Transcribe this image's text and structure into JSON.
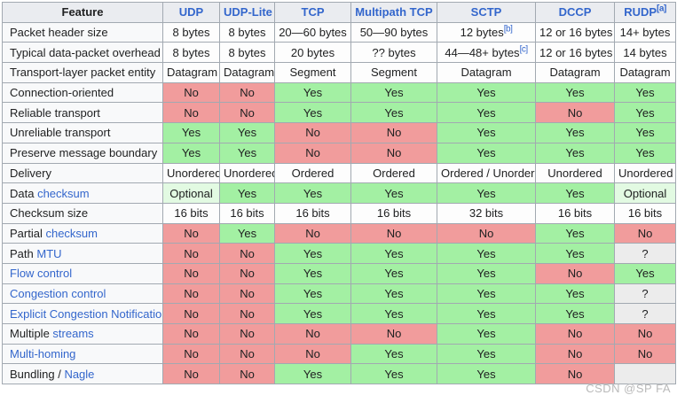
{
  "page": {
    "watermark": "CSDN @SP FA"
  },
  "colors": {
    "yes_bg": "#a3f0a3",
    "no_bg": "#f19c9c",
    "optional_bg": "#e2fae2",
    "unknown_bg": "#ececec",
    "header_bg": "#eaecf0",
    "feature_col_bg": "#f8f9fa",
    "border": "#a2a9b1",
    "link": "#3366cc",
    "text": "#202122"
  },
  "table": {
    "header": [
      {
        "label": "Feature",
        "link": false
      },
      {
        "label": "UDP",
        "link": true
      },
      {
        "label": "UDP-Lite",
        "link": true
      },
      {
        "label": "TCP",
        "link": true
      },
      {
        "label": "Multipath TCP",
        "link": true
      },
      {
        "label": "SCTP",
        "link": true
      },
      {
        "label": "DCCP",
        "link": true
      },
      {
        "label": "RUDP",
        "link": true,
        "sup": "[a]"
      }
    ],
    "rows": [
      {
        "feature": [
          {
            "t": "Packet header size",
            "link": false
          }
        ],
        "cells": [
          {
            "t": "8 bytes",
            "c": "plain"
          },
          {
            "t": "8 bytes",
            "c": "plain"
          },
          {
            "t": "20—60 bytes",
            "c": "plain"
          },
          {
            "t": "50—90 bytes",
            "c": "plain"
          },
          {
            "t": "12 bytes",
            "c": "plain",
            "sup": "[b]"
          },
          {
            "t": "12 or 16 bytes",
            "c": "plain"
          },
          {
            "t": "14+ bytes",
            "c": "plain"
          }
        ]
      },
      {
        "feature": [
          {
            "t": "Typical data-packet overhead",
            "link": false
          }
        ],
        "cells": [
          {
            "t": "8 bytes",
            "c": "plain"
          },
          {
            "t": "8 bytes",
            "c": "plain"
          },
          {
            "t": "20 bytes",
            "c": "plain"
          },
          {
            "t": "?? bytes",
            "c": "plain"
          },
          {
            "t": "44—48+ bytes",
            "c": "plain",
            "sup": "[c]"
          },
          {
            "t": "12 or 16 bytes",
            "c": "plain"
          },
          {
            "t": "14 bytes",
            "c": "plain"
          }
        ]
      },
      {
        "feature": [
          {
            "t": "Transport-layer packet entity",
            "link": false
          }
        ],
        "cells": [
          {
            "t": "Datagram",
            "c": "plain"
          },
          {
            "t": "Datagram",
            "c": "plain"
          },
          {
            "t": "Segment",
            "c": "plain"
          },
          {
            "t": "Segment",
            "c": "plain"
          },
          {
            "t": "Datagram",
            "c": "plain"
          },
          {
            "t": "Datagram",
            "c": "plain"
          },
          {
            "t": "Datagram",
            "c": "plain"
          }
        ]
      },
      {
        "feature": [
          {
            "t": "Connection-oriented",
            "link": false
          }
        ],
        "cells": [
          {
            "t": "No",
            "c": "no"
          },
          {
            "t": "No",
            "c": "no"
          },
          {
            "t": "Yes",
            "c": "yes"
          },
          {
            "t": "Yes",
            "c": "yes"
          },
          {
            "t": "Yes",
            "c": "yes"
          },
          {
            "t": "Yes",
            "c": "yes"
          },
          {
            "t": "Yes",
            "c": "yes"
          }
        ]
      },
      {
        "feature": [
          {
            "t": "Reliable transport",
            "link": false
          }
        ],
        "cells": [
          {
            "t": "No",
            "c": "no"
          },
          {
            "t": "No",
            "c": "no"
          },
          {
            "t": "Yes",
            "c": "yes"
          },
          {
            "t": "Yes",
            "c": "yes"
          },
          {
            "t": "Yes",
            "c": "yes"
          },
          {
            "t": "No",
            "c": "no"
          },
          {
            "t": "Yes",
            "c": "yes"
          }
        ]
      },
      {
        "feature": [
          {
            "t": "Unreliable transport",
            "link": false
          }
        ],
        "cells": [
          {
            "t": "Yes",
            "c": "yes"
          },
          {
            "t": "Yes",
            "c": "yes"
          },
          {
            "t": "No",
            "c": "no"
          },
          {
            "t": "No",
            "c": "no"
          },
          {
            "t": "Yes",
            "c": "yes"
          },
          {
            "t": "Yes",
            "c": "yes"
          },
          {
            "t": "Yes",
            "c": "yes"
          }
        ]
      },
      {
        "feature": [
          {
            "t": "Preserve message boundary",
            "link": false
          }
        ],
        "cells": [
          {
            "t": "Yes",
            "c": "yes"
          },
          {
            "t": "Yes",
            "c": "yes"
          },
          {
            "t": "No",
            "c": "no"
          },
          {
            "t": "No",
            "c": "no"
          },
          {
            "t": "Yes",
            "c": "yes"
          },
          {
            "t": "Yes",
            "c": "yes"
          },
          {
            "t": "Yes",
            "c": "yes"
          }
        ]
      },
      {
        "feature": [
          {
            "t": "Delivery",
            "link": false
          }
        ],
        "cells": [
          {
            "t": "Unordered",
            "c": "plain"
          },
          {
            "t": "Unordered",
            "c": "plain"
          },
          {
            "t": "Ordered",
            "c": "plain"
          },
          {
            "t": "Ordered",
            "c": "plain"
          },
          {
            "t": "Ordered / Unordered",
            "c": "plain"
          },
          {
            "t": "Unordered",
            "c": "plain"
          },
          {
            "t": "Unordered",
            "c": "plain"
          }
        ]
      },
      {
        "feature": [
          {
            "t": "Data ",
            "link": false
          },
          {
            "t": "checksum",
            "link": true
          }
        ],
        "cells": [
          {
            "t": "Optional",
            "c": "opt"
          },
          {
            "t": "Yes",
            "c": "yes"
          },
          {
            "t": "Yes",
            "c": "yes"
          },
          {
            "t": "Yes",
            "c": "yes"
          },
          {
            "t": "Yes",
            "c": "yes"
          },
          {
            "t": "Yes",
            "c": "yes"
          },
          {
            "t": "Optional",
            "c": "opt"
          }
        ]
      },
      {
        "feature": [
          {
            "t": "Checksum size",
            "link": false
          }
        ],
        "cells": [
          {
            "t": "16 bits",
            "c": "plain"
          },
          {
            "t": "16 bits",
            "c": "plain"
          },
          {
            "t": "16 bits",
            "c": "plain"
          },
          {
            "t": "16 bits",
            "c": "plain"
          },
          {
            "t": "32 bits",
            "c": "plain"
          },
          {
            "t": "16 bits",
            "c": "plain"
          },
          {
            "t": "16 bits",
            "c": "plain"
          }
        ]
      },
      {
        "feature": [
          {
            "t": "Partial ",
            "link": false
          },
          {
            "t": "checksum",
            "link": true
          }
        ],
        "cells": [
          {
            "t": "No",
            "c": "no"
          },
          {
            "t": "Yes",
            "c": "yes"
          },
          {
            "t": "No",
            "c": "no"
          },
          {
            "t": "No",
            "c": "no"
          },
          {
            "t": "No",
            "c": "no"
          },
          {
            "t": "Yes",
            "c": "yes"
          },
          {
            "t": "No",
            "c": "no"
          }
        ]
      },
      {
        "feature": [
          {
            "t": "Path ",
            "link": false
          },
          {
            "t": "MTU",
            "link": true
          }
        ],
        "cells": [
          {
            "t": "No",
            "c": "no"
          },
          {
            "t": "No",
            "c": "no"
          },
          {
            "t": "Yes",
            "c": "yes"
          },
          {
            "t": "Yes",
            "c": "yes"
          },
          {
            "t": "Yes",
            "c": "yes"
          },
          {
            "t": "Yes",
            "c": "yes"
          },
          {
            "t": "?",
            "c": "unk"
          }
        ]
      },
      {
        "feature": [
          {
            "t": "Flow control",
            "link": true
          }
        ],
        "cells": [
          {
            "t": "No",
            "c": "no"
          },
          {
            "t": "No",
            "c": "no"
          },
          {
            "t": "Yes",
            "c": "yes"
          },
          {
            "t": "Yes",
            "c": "yes"
          },
          {
            "t": "Yes",
            "c": "yes"
          },
          {
            "t": "No",
            "c": "no"
          },
          {
            "t": "Yes",
            "c": "yes"
          }
        ]
      },
      {
        "feature": [
          {
            "t": "Congestion control",
            "link": true
          }
        ],
        "cells": [
          {
            "t": "No",
            "c": "no"
          },
          {
            "t": "No",
            "c": "no"
          },
          {
            "t": "Yes",
            "c": "yes"
          },
          {
            "t": "Yes",
            "c": "yes"
          },
          {
            "t": "Yes",
            "c": "yes"
          },
          {
            "t": "Yes",
            "c": "yes"
          },
          {
            "t": "?",
            "c": "unk"
          }
        ]
      },
      {
        "feature": [
          {
            "t": "Explicit Congestion Notification",
            "link": true
          }
        ],
        "cells": [
          {
            "t": "No",
            "c": "no"
          },
          {
            "t": "No",
            "c": "no"
          },
          {
            "t": "Yes",
            "c": "yes"
          },
          {
            "t": "Yes",
            "c": "yes"
          },
          {
            "t": "Yes",
            "c": "yes"
          },
          {
            "t": "Yes",
            "c": "yes"
          },
          {
            "t": "?",
            "c": "unk"
          }
        ]
      },
      {
        "feature": [
          {
            "t": "Multiple ",
            "link": false
          },
          {
            "t": "streams",
            "link": true
          }
        ],
        "cells": [
          {
            "t": "No",
            "c": "no"
          },
          {
            "t": "No",
            "c": "no"
          },
          {
            "t": "No",
            "c": "no"
          },
          {
            "t": "No",
            "c": "no"
          },
          {
            "t": "Yes",
            "c": "yes"
          },
          {
            "t": "No",
            "c": "no"
          },
          {
            "t": "No",
            "c": "no"
          }
        ]
      },
      {
        "feature": [
          {
            "t": "Multi-homing",
            "link": true
          }
        ],
        "cells": [
          {
            "t": "No",
            "c": "no"
          },
          {
            "t": "No",
            "c": "no"
          },
          {
            "t": "No",
            "c": "no"
          },
          {
            "t": "Yes",
            "c": "yes"
          },
          {
            "t": "Yes",
            "c": "yes"
          },
          {
            "t": "No",
            "c": "no"
          },
          {
            "t": "No",
            "c": "no"
          }
        ]
      },
      {
        "feature": [
          {
            "t": "Bundling / ",
            "link": false
          },
          {
            "t": "Nagle",
            "link": true
          }
        ],
        "cells": [
          {
            "t": "No",
            "c": "no"
          },
          {
            "t": "No",
            "c": "no"
          },
          {
            "t": "Yes",
            "c": "yes"
          },
          {
            "t": "Yes",
            "c": "yes"
          },
          {
            "t": "Yes",
            "c": "yes"
          },
          {
            "t": "No",
            "c": "no"
          },
          {
            "t": "",
            "c": "unk"
          }
        ]
      }
    ]
  }
}
